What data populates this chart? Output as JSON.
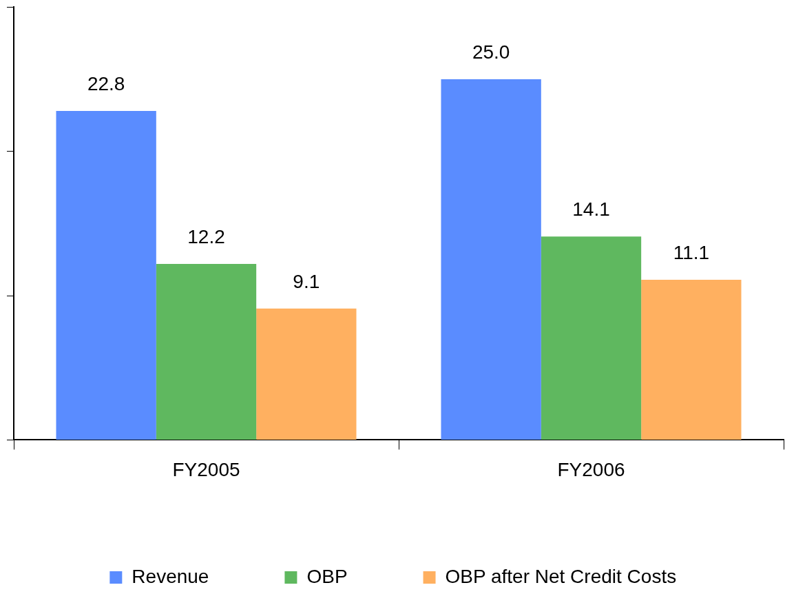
{
  "chart_data": {
    "type": "bar",
    "categories": [
      "FY2005",
      "FY2006"
    ],
    "series": [
      {
        "name": "Revenue",
        "color": "#5a8cff",
        "values": [
          22.8,
          25.0
        ],
        "value_labels": [
          "22.8",
          "25.0"
        ]
      },
      {
        "name": "OBP",
        "color": "#5fb85f",
        "values": [
          12.2,
          14.1
        ],
        "value_labels": [
          "12.2",
          "14.1"
        ]
      },
      {
        "name": "OBP after Net Credit Costs",
        "color": "#ffb060",
        "values": [
          9.1,
          11.1
        ],
        "value_labels": [
          "9.1",
          "11.1"
        ]
      }
    ],
    "ylim": [
      0,
      30
    ],
    "yticks": [
      {
        "value": 0,
        "label": null
      },
      {
        "value": 10,
        "label": null
      },
      {
        "value": 20,
        "label": null
      },
      {
        "value": 30,
        "label": null
      }
    ],
    "tick_labels": "x",
    "grid": false,
    "legend": "bottom"
  }
}
